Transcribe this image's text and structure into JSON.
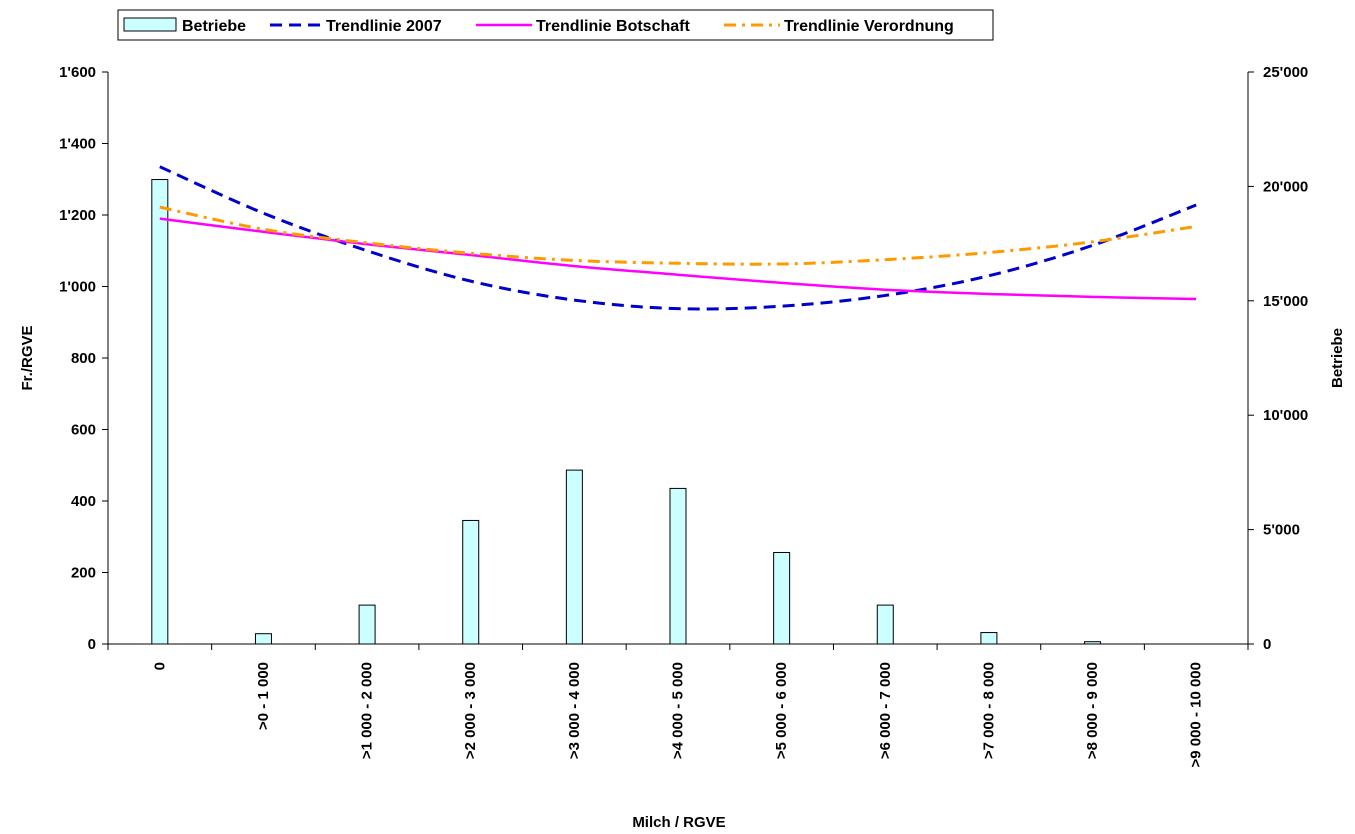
{
  "chart_data": {
    "type": "bar",
    "categories": [
      "0",
      ">0 - 1 000",
      ">1 000 - 2 000",
      ">2 000 - 3 000",
      ">3 000 - 4 000",
      ">4 000 - 5 000",
      ">5 000 - 6 000",
      ">6 000 - 7 000",
      ">7 000 - 8 000",
      ">8 000 - 9 000",
      ">9 000 - 10 000"
    ],
    "xlabel": "Milch / RGVE",
    "ylabel": "Fr./RGVE",
    "y2label": "Betriebe",
    "ylim": [
      0,
      1600
    ],
    "y2lim": [
      0,
      25000
    ],
    "yticks": [
      "0",
      "200",
      "400",
      "600",
      "800",
      "1'000",
      "1'200",
      "1'400",
      "1'600"
    ],
    "y2ticks": [
      "0",
      "5'000",
      "10'000",
      "15'000",
      "20'000",
      "25'000"
    ],
    "grid": false,
    "legend_position": "top-left",
    "series": [
      {
        "name": "Betriebe",
        "type": "bar",
        "axis": "right",
        "color": "#ccffff",
        "values": [
          20300,
          450,
          1700,
          5400,
          7600,
          6800,
          4000,
          1700,
          500,
          100,
          0
        ]
      },
      {
        "name": "Trendlinie 2007",
        "type": "line",
        "axis": "left",
        "style": "dashed",
        "color": "#0000cc",
        "values": [
          1335,
          1205,
          1100,
          1015,
          962,
          938,
          945,
          975,
          1030,
          1115,
          1228
        ]
      },
      {
        "name": "Trendlinie Botschaft",
        "type": "line",
        "axis": "left",
        "style": "solid",
        "color": "#ff00ff",
        "values": [
          1190,
          1153,
          1118,
          1088,
          1057,
          1033,
          1010,
          991,
          979,
          971,
          965
        ]
      },
      {
        "name": "Trendlinie Verordnung",
        "type": "line",
        "axis": "left",
        "style": "dashdot",
        "color": "#ff9900",
        "values": [
          1222,
          1160,
          1122,
          1093,
          1073,
          1065,
          1063,
          1075,
          1095,
          1125,
          1168
        ]
      }
    ]
  }
}
